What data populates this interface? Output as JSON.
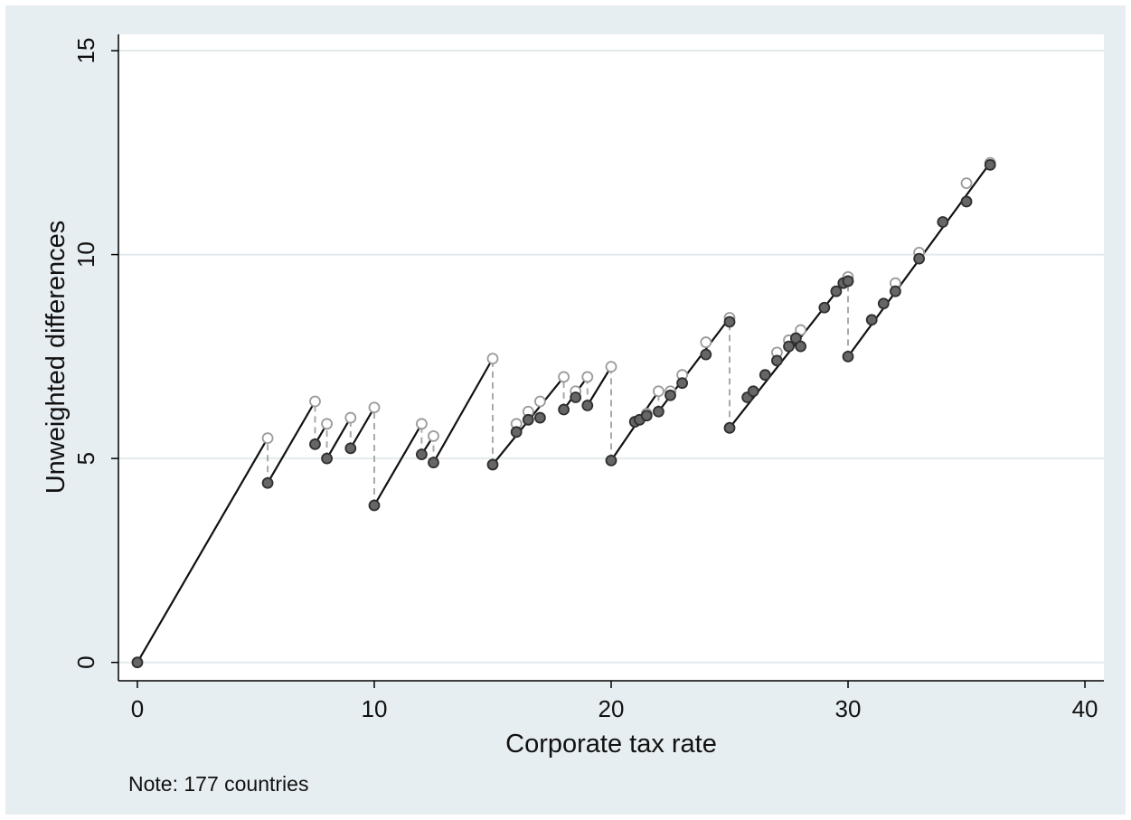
{
  "chart_data": {
    "type": "scatter",
    "xlabel": "Corporate tax rate",
    "ylabel": "Unweighted differences",
    "xlim": [
      -0.8,
      40.8
    ],
    "ylim": [
      -0.45,
      15.4
    ],
    "xticks": [
      0,
      10,
      20,
      30,
      40
    ],
    "yticks": [
      0,
      5,
      10,
      15
    ],
    "grid": true,
    "note": "Note: 177 countries",
    "colors": {
      "plot_background": "#ffffff",
      "figure_background": "#e7eef1",
      "gridline": "#e3eaed",
      "segment": "#111111",
      "jump": "#a9a9a9",
      "open_marker_edge": "#9a9a9a",
      "filled_marker": "#666666",
      "filled_marker_edge": "#2f2f2f"
    },
    "series": [
      {
        "marker": "hollow",
        "points": [
          [
            5.5,
            5.5
          ],
          [
            7.5,
            6.4
          ],
          [
            8.0,
            5.85
          ],
          [
            9.0,
            6.0
          ],
          [
            10.0,
            6.25
          ],
          [
            12.0,
            5.85
          ],
          [
            12.5,
            5.55
          ],
          [
            15.0,
            7.45
          ],
          [
            16.0,
            5.85
          ],
          [
            16.5,
            6.15
          ],
          [
            17.0,
            6.4
          ],
          [
            18.0,
            7.0
          ],
          [
            18.5,
            6.65
          ],
          [
            19.0,
            7.0
          ],
          [
            20.0,
            7.25
          ],
          [
            21.5,
            6.1
          ],
          [
            22.0,
            6.65
          ],
          [
            22.5,
            6.65
          ],
          [
            23.0,
            7.05
          ],
          [
            24.0,
            7.85
          ],
          [
            25.0,
            8.45
          ],
          [
            27.0,
            7.6
          ],
          [
            27.5,
            7.9
          ],
          [
            28.0,
            8.15
          ],
          [
            30.0,
            9.45
          ],
          [
            32.0,
            9.3
          ],
          [
            33.0,
            10.05
          ],
          [
            35.0,
            11.75
          ],
          [
            36.0,
            12.25
          ]
        ]
      },
      {
        "marker": "filled",
        "points": [
          [
            0.0,
            0.0
          ],
          [
            5.5,
            4.4
          ],
          [
            7.5,
            5.35
          ],
          [
            8.0,
            5.0
          ],
          [
            9.0,
            5.25
          ],
          [
            10.0,
            3.85
          ],
          [
            12.0,
            5.1
          ],
          [
            12.5,
            4.9
          ],
          [
            15.0,
            4.85
          ],
          [
            16.0,
            5.65
          ],
          [
            16.5,
            5.95
          ],
          [
            17.0,
            6.0
          ],
          [
            18.0,
            6.2
          ],
          [
            18.5,
            6.5
          ],
          [
            19.0,
            6.3
          ],
          [
            20.0,
            4.95
          ],
          [
            21.0,
            5.9
          ],
          [
            21.2,
            5.95
          ],
          [
            21.5,
            6.05
          ],
          [
            22.0,
            6.15
          ],
          [
            22.5,
            6.55
          ],
          [
            23.0,
            6.85
          ],
          [
            24.0,
            7.55
          ],
          [
            25.0,
            8.35
          ],
          [
            25.0,
            5.75
          ],
          [
            25.75,
            6.5
          ],
          [
            26.0,
            6.65
          ],
          [
            26.5,
            7.05
          ],
          [
            27.0,
            7.4
          ],
          [
            27.5,
            7.75
          ],
          [
            27.8,
            7.95
          ],
          [
            28.0,
            7.75
          ],
          [
            29.0,
            8.7
          ],
          [
            29.5,
            9.1
          ],
          [
            29.8,
            9.3
          ],
          [
            30.0,
            9.35
          ],
          [
            30.0,
            7.5
          ],
          [
            31.0,
            8.4
          ],
          [
            31.5,
            8.8
          ],
          [
            32.0,
            9.1
          ],
          [
            33.0,
            9.9
          ],
          [
            34.0,
            10.8
          ],
          [
            35.0,
            11.3
          ],
          [
            36.0,
            12.2
          ]
        ]
      }
    ],
    "segments": [
      {
        "x": [
          0.0,
          5.5
        ],
        "y": [
          0.0,
          5.5
        ]
      },
      {
        "x": [
          5.5,
          7.5
        ],
        "y": [
          4.4,
          6.4
        ]
      },
      {
        "x": [
          7.5,
          8.0
        ],
        "y": [
          5.35,
          5.85
        ]
      },
      {
        "x": [
          8.0,
          9.0
        ],
        "y": [
          5.0,
          6.0
        ]
      },
      {
        "x": [
          9.0,
          10.0
        ],
        "y": [
          5.25,
          6.25
        ]
      },
      {
        "x": [
          10.0,
          12.0
        ],
        "y": [
          3.85,
          5.85
        ]
      },
      {
        "x": [
          12.0,
          12.5
        ],
        "y": [
          5.1,
          5.55
        ]
      },
      {
        "x": [
          12.5,
          15.0
        ],
        "y": [
          4.9,
          7.45
        ]
      },
      {
        "x": [
          15.0,
          18.0
        ],
        "y": [
          4.85,
          7.0
        ]
      },
      {
        "x": [
          18.0,
          19.0
        ],
        "y": [
          6.2,
          7.0
        ]
      },
      {
        "x": [
          19.0,
          20.0
        ],
        "y": [
          6.3,
          7.25
        ]
      },
      {
        "x": [
          20.0,
          22.0
        ],
        "y": [
          4.95,
          6.65
        ]
      },
      {
        "x": [
          22.0,
          25.0
        ],
        "y": [
          6.15,
          8.45
        ]
      },
      {
        "x": [
          25.0,
          30.0
        ],
        "y": [
          5.75,
          9.45
        ]
      },
      {
        "x": [
          30.0,
          36.0
        ],
        "y": [
          7.5,
          12.25
        ]
      }
    ],
    "jumps": [
      {
        "x": 5.5,
        "y": [
          4.4,
          5.5
        ]
      },
      {
        "x": 7.5,
        "y": [
          5.35,
          6.4
        ]
      },
      {
        "x": 8.0,
        "y": [
          5.0,
          5.85
        ]
      },
      {
        "x": 9.0,
        "y": [
          5.25,
          6.0
        ]
      },
      {
        "x": 10.0,
        "y": [
          3.85,
          6.25
        ]
      },
      {
        "x": 12.0,
        "y": [
          5.1,
          5.85
        ]
      },
      {
        "x": 12.5,
        "y": [
          4.9,
          5.55
        ]
      },
      {
        "x": 15.0,
        "y": [
          4.85,
          7.45
        ]
      },
      {
        "x": 18.0,
        "y": [
          6.2,
          7.0
        ]
      },
      {
        "x": 19.0,
        "y": [
          6.3,
          7.0
        ]
      },
      {
        "x": 20.0,
        "y": [
          4.95,
          7.25
        ]
      },
      {
        "x": 22.0,
        "y": [
          6.15,
          6.65
        ]
      },
      {
        "x": 25.0,
        "y": [
          5.75,
          8.45
        ]
      },
      {
        "x": 30.0,
        "y": [
          7.5,
          9.45
        ]
      }
    ]
  }
}
